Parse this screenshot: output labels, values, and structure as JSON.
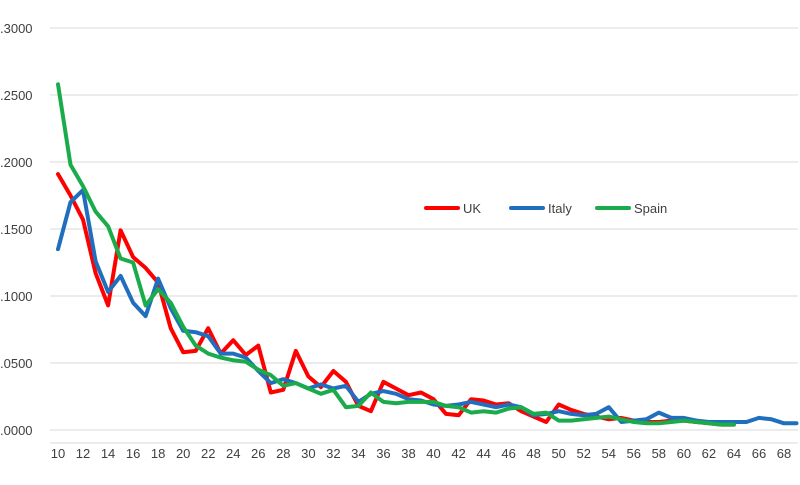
{
  "chart_data": {
    "type": "line",
    "title": "",
    "xlabel": "",
    "ylabel": "",
    "ylim": [
      0,
      0.3
    ],
    "xlim": [
      10,
      69
    ],
    "y_ticks": [
      ".0000",
      ".0500",
      ".1000",
      ".1500",
      ".2000",
      ".2500",
      ".3000"
    ],
    "y_tick_values": [
      0,
      0.05,
      0.1,
      0.15,
      0.2,
      0.25,
      0.3
    ],
    "x_ticks": [
      "10",
      "12",
      "14",
      "16",
      "18",
      "20",
      "22",
      "24",
      "26",
      "28",
      "30",
      "32",
      "34",
      "36",
      "38",
      "40",
      "42",
      "44",
      "46",
      "48",
      "50",
      "52",
      "54",
      "56",
      "58",
      "60",
      "62",
      "64",
      "66",
      "68"
    ],
    "grid": "horizontal",
    "legend_position": "right-center",
    "series": [
      {
        "name": "UK",
        "color": "#ff0000",
        "x": [
          10,
          11,
          12,
          13,
          14,
          15,
          16,
          17,
          18,
          19,
          20,
          21,
          22,
          23,
          24,
          25,
          26,
          27,
          28,
          29,
          30,
          31,
          32,
          33,
          34,
          35,
          36,
          37,
          38,
          39,
          40,
          41,
          42,
          43,
          44,
          45,
          46,
          47,
          48,
          49,
          50,
          51,
          52,
          53,
          54,
          55,
          56,
          57,
          58,
          59,
          60,
          61,
          62,
          63,
          64
        ],
        "y": [
          0.191,
          0.175,
          0.157,
          0.117,
          0.093,
          0.149,
          0.129,
          0.121,
          0.11,
          0.076,
          0.058,
          0.059,
          0.076,
          0.057,
          0.067,
          0.056,
          0.063,
          0.028,
          0.03,
          0.059,
          0.04,
          0.032,
          0.044,
          0.036,
          0.018,
          0.014,
          0.036,
          0.031,
          0.026,
          0.028,
          0.023,
          0.012,
          0.011,
          0.023,
          0.022,
          0.019,
          0.02,
          0.014,
          0.01,
          0.006,
          0.019,
          0.015,
          0.012,
          0.01,
          0.008,
          0.009,
          0.007,
          0.006,
          0.006,
          0.007,
          0.007,
          0.006,
          0.005,
          0.004,
          0.004
        ]
      },
      {
        "name": "Italy",
        "color": "#1f6fbe",
        "x": [
          10,
          11,
          12,
          13,
          14,
          15,
          16,
          17,
          18,
          19,
          20,
          21,
          22,
          23,
          24,
          25,
          26,
          27,
          28,
          29,
          30,
          31,
          32,
          33,
          34,
          35,
          36,
          37,
          38,
          39,
          40,
          41,
          42,
          43,
          44,
          45,
          46,
          47,
          48,
          49,
          50,
          51,
          52,
          53,
          54,
          55,
          56,
          57,
          58,
          59,
          60,
          61,
          62,
          63,
          64,
          65,
          66,
          67,
          68,
          69
        ],
        "y": [
          0.135,
          0.17,
          0.179,
          0.126,
          0.103,
          0.115,
          0.095,
          0.085,
          0.113,
          0.091,
          0.074,
          0.073,
          0.07,
          0.057,
          0.057,
          0.054,
          0.044,
          0.035,
          0.038,
          0.035,
          0.031,
          0.034,
          0.031,
          0.033,
          0.021,
          0.027,
          0.029,
          0.027,
          0.023,
          0.022,
          0.019,
          0.018,
          0.019,
          0.021,
          0.019,
          0.017,
          0.019,
          0.017,
          0.011,
          0.012,
          0.014,
          0.012,
          0.011,
          0.012,
          0.017,
          0.006,
          0.007,
          0.008,
          0.013,
          0.009,
          0.009,
          0.007,
          0.006,
          0.006,
          0.006,
          0.006,
          0.009,
          0.008,
          0.005,
          0.005
        ]
      },
      {
        "name": "Spain",
        "color": "#1aab4a",
        "x": [
          10,
          11,
          12,
          13,
          14,
          15,
          16,
          17,
          18,
          19,
          20,
          21,
          22,
          23,
          24,
          25,
          26,
          27,
          28,
          29,
          30,
          31,
          32,
          33,
          34,
          35,
          36,
          37,
          38,
          39,
          40,
          41,
          42,
          43,
          44,
          45,
          46,
          47,
          48,
          49,
          50,
          51,
          52,
          53,
          54,
          55,
          56,
          57,
          58,
          59,
          60,
          61,
          62,
          63,
          64
        ],
        "y": [
          0.258,
          0.198,
          0.182,
          0.163,
          0.152,
          0.128,
          0.125,
          0.093,
          0.105,
          0.095,
          0.077,
          0.063,
          0.057,
          0.054,
          0.052,
          0.051,
          0.045,
          0.041,
          0.033,
          0.035,
          0.031,
          0.027,
          0.03,
          0.017,
          0.018,
          0.028,
          0.021,
          0.02,
          0.021,
          0.021,
          0.021,
          0.018,
          0.017,
          0.013,
          0.014,
          0.013,
          0.016,
          0.017,
          0.012,
          0.013,
          0.007,
          0.007,
          0.008,
          0.009,
          0.01,
          0.008,
          0.006,
          0.005,
          0.005,
          0.006,
          0.007,
          0.006,
          0.005,
          0.004,
          0.004
        ]
      }
    ]
  }
}
